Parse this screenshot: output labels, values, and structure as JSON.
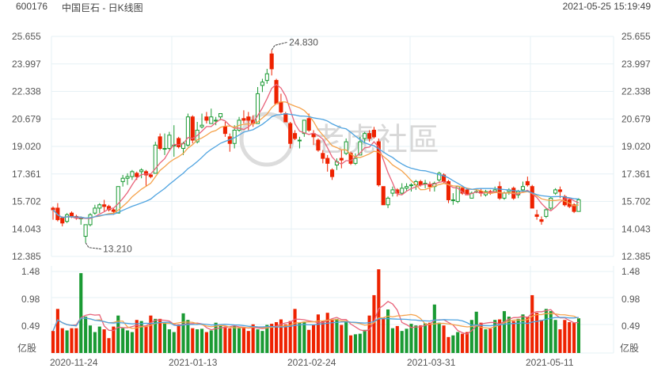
{
  "header": {
    "code": "600176",
    "title": "中国巨石 - 日K线图",
    "datetime": "2021-05-25 15:19:49"
  },
  "watermark": "老虎社區",
  "colors": {
    "up": "#1a9a33",
    "down": "#ee2200",
    "ma5": "#e8637a",
    "ma10": "#f5a24b",
    "ma20": "#4ea3e0",
    "grid": "#e6f0f5"
  },
  "chart_data": {
    "type": "candlestick",
    "price_axis": {
      "ticks": [
        "25.655",
        "23.997",
        "22.338",
        "20.679",
        "19.020",
        "17.361",
        "15.702",
        "14.043",
        "12.385"
      ],
      "range": [
        12.385,
        25.655
      ]
    },
    "volume_axis": {
      "ticks": [
        "1.48",
        "0.98",
        "0.49"
      ],
      "unit": "亿股",
      "range": [
        0,
        1.48
      ]
    },
    "x_labels": [
      "2020-11-24",
      "2021-01-13",
      "2021-02-24",
      "2021-03-31",
      "2021-05-11"
    ],
    "annotations": {
      "max": "24.830",
      "min": "13.210"
    },
    "ma_periods": [
      5,
      10,
      20
    ],
    "ohlc": [
      [
        15.3,
        15.4,
        14.6,
        15.2
      ],
      [
        15.3,
        15.6,
        14.5,
        14.6
      ],
      [
        14.7,
        14.8,
        14.2,
        14.4
      ],
      [
        14.5,
        15.0,
        14.4,
        14.9
      ],
      [
        15.0,
        15.1,
        14.7,
        14.8
      ],
      [
        14.8,
        14.9,
        14.6,
        14.7
      ],
      [
        14.7,
        14.8,
        14.3,
        14.7
      ],
      [
        13.6,
        14.3,
        13.21,
        14.3
      ],
      [
        14.3,
        15.0,
        14.2,
        14.9
      ],
      [
        15.0,
        15.5,
        14.9,
        15.3
      ],
      [
        15.3,
        15.6,
        15.0,
        15.5
      ],
      [
        15.5,
        15.8,
        15.1,
        15.4
      ],
      [
        15.4,
        15.5,
        15.1,
        15.2
      ],
      [
        15.2,
        15.3,
        14.9,
        15.1
      ],
      [
        15.0,
        16.6,
        15.0,
        16.6
      ],
      [
        16.9,
        17.3,
        16.6,
        17.1
      ],
      [
        17.1,
        17.4,
        16.7,
        17.2
      ],
      [
        17.2,
        17.6,
        17.0,
        17.5
      ],
      [
        17.4,
        17.5,
        17.0,
        17.2
      ],
      [
        17.5,
        17.7,
        17.1,
        17.6
      ],
      [
        17.5,
        17.6,
        16.6,
        17.3
      ],
      [
        17.3,
        17.4,
        17.1,
        17.2
      ],
      [
        17.4,
        19.3,
        17.4,
        19.1
      ],
      [
        19.6,
        19.8,
        18.8,
        18.9
      ],
      [
        18.9,
        19.8,
        18.5,
        18.9
      ],
      [
        18.9,
        19.9,
        18.8,
        19.7
      ],
      [
        19.1,
        20.3,
        18.4,
        19.1
      ],
      [
        19.5,
        19.6,
        18.9,
        19.0
      ],
      [
        18.9,
        19.3,
        18.5,
        19.2
      ],
      [
        19.1,
        21.0,
        19.0,
        20.8
      ],
      [
        20.8,
        20.9,
        19.2,
        19.4
      ],
      [
        19.3,
        20.5,
        19.2,
        20.0
      ],
      [
        20.2,
        21.0,
        20.1,
        20.3
      ],
      [
        20.8,
        21.1,
        20.4,
        20.6
      ],
      [
        20.4,
        21.3,
        20.4,
        20.8
      ],
      [
        20.6,
        20.8,
        20.3,
        20.6
      ],
      [
        20.8,
        21.0,
        20.6,
        21.0
      ],
      [
        20.2,
        20.5,
        19.6,
        19.8
      ],
      [
        19.6,
        19.8,
        18.7,
        19.2
      ],
      [
        19.2,
        20.3,
        18.9,
        20.0
      ],
      [
        20.0,
        20.8,
        19.9,
        20.6
      ],
      [
        20.7,
        21.2,
        20.4,
        20.6
      ],
      [
        20.8,
        21.1,
        20.0,
        20.6
      ],
      [
        20.6,
        20.9,
        20.2,
        20.4
      ],
      [
        20.4,
        22.6,
        20.4,
        22.2
      ],
      [
        22.7,
        23.1,
        22.3,
        22.9
      ],
      [
        23.0,
        23.7,
        22.8,
        23.4
      ],
      [
        24.6,
        24.83,
        23.3,
        23.7
      ],
      [
        23.0,
        23.1,
        21.6,
        21.6
      ],
      [
        21.7,
        22.2,
        21.0,
        21.1
      ],
      [
        21.0,
        21.1,
        20.5,
        20.5
      ],
      [
        20.4,
        20.5,
        18.9,
        19.2
      ],
      [
        19.8,
        20.0,
        19.4,
        19.5
      ],
      [
        19.4,
        19.6,
        18.9,
        19.4
      ],
      [
        19.8,
        20.6,
        19.6,
        20.6
      ],
      [
        20.7,
        21.0,
        19.9,
        20.0
      ],
      [
        19.8,
        20.0,
        19.1,
        19.6
      ],
      [
        19.4,
        19.5,
        18.7,
        18.8
      ],
      [
        18.6,
        18.8,
        18.0,
        18.3
      ],
      [
        18.3,
        18.5,
        17.5,
        18.0
      ],
      [
        17.6,
        17.7,
        17.0,
        17.2
      ],
      [
        17.9,
        18.3,
        17.6,
        18.1
      ],
      [
        18.3,
        18.8,
        17.7,
        18.2
      ],
      [
        18.6,
        19.5,
        18.5,
        19.3
      ],
      [
        18.6,
        18.7,
        17.9,
        18.0
      ],
      [
        18.0,
        18.6,
        17.9,
        18.3
      ],
      [
        18.5,
        19.6,
        18.5,
        19.3
      ],
      [
        19.5,
        19.9,
        19.2,
        19.8
      ],
      [
        19.8,
        20.0,
        19.3,
        19.5
      ],
      [
        20.0,
        20.2,
        19.5,
        19.6
      ],
      [
        19.3,
        19.5,
        16.6,
        16.7
      ],
      [
        16.6,
        16.6,
        15.5,
        15.5
      ],
      [
        15.5,
        16.0,
        15.3,
        15.9
      ],
      [
        16.2,
        16.6,
        16.0,
        16.4
      ],
      [
        16.4,
        16.5,
        16.0,
        16.2
      ],
      [
        16.2,
        16.8,
        16.1,
        16.5
      ],
      [
        16.5,
        16.8,
        16.3,
        16.6
      ],
      [
        16.7,
        16.8,
        16.3,
        16.7
      ],
      [
        16.7,
        17.0,
        16.4,
        16.9
      ],
      [
        16.9,
        17.0,
        16.6,
        16.7
      ],
      [
        16.8,
        17.0,
        16.5,
        16.8
      ],
      [
        16.7,
        16.9,
        16.3,
        16.6
      ],
      [
        16.6,
        16.9,
        16.3,
        16.8
      ],
      [
        17.0,
        17.5,
        16.9,
        17.4
      ],
      [
        17.3,
        17.4,
        16.8,
        16.9
      ],
      [
        16.9,
        17.0,
        15.6,
        15.8
      ],
      [
        15.8,
        16.2,
        15.5,
        15.8
      ],
      [
        15.7,
        16.6,
        15.6,
        16.6
      ],
      [
        16.5,
        16.6,
        16.1,
        16.2
      ],
      [
        16.4,
        16.5,
        16.1,
        16.1
      ],
      [
        15.9,
        16.3,
        15.9,
        16.2
      ],
      [
        16.3,
        16.4,
        16.2,
        16.3
      ],
      [
        16.3,
        16.5,
        16.0,
        16.2
      ],
      [
        16.1,
        16.4,
        16.0,
        16.3
      ],
      [
        16.3,
        16.4,
        16.1,
        16.25
      ],
      [
        16.3,
        16.6,
        16.2,
        16.4
      ],
      [
        16.6,
        16.9,
        15.8,
        15.9
      ],
      [
        15.9,
        16.3,
        15.8,
        16.2
      ],
      [
        16.3,
        16.5,
        16.1,
        16.4
      ],
      [
        16.5,
        16.6,
        15.8,
        15.9
      ],
      [
        16.1,
        16.4,
        15.9,
        16.3
      ],
      [
        16.4,
        16.9,
        16.3,
        16.6
      ],
      [
        16.9,
        17.2,
        16.6,
        16.7
      ],
      [
        16.6,
        16.7,
        15.3,
        15.3
      ],
      [
        14.9,
        15.2,
        14.6,
        14.8
      ],
      [
        14.6,
        14.8,
        14.3,
        14.5
      ],
      [
        14.8,
        15.3,
        14.7,
        15.2
      ],
      [
        15.3,
        16.0,
        15.2,
        15.9
      ],
      [
        16.2,
        16.5,
        16.1,
        16.4
      ],
      [
        16.4,
        16.6,
        15.9,
        16.3
      ],
      [
        16.0,
        16.1,
        15.4,
        15.5
      ],
      [
        15.8,
        15.9,
        15.3,
        15.4
      ],
      [
        15.5,
        15.6,
        15.0,
        15.1
      ],
      [
        15.1,
        15.9,
        15.1,
        15.8
      ]
    ],
    "volume": [
      0.4,
      0.8,
      0.45,
      0.41,
      0.45,
      0.45,
      1.45,
      0.66,
      0.5,
      0.38,
      0.48,
      0.43,
      0.27,
      0.48,
      0.68,
      0.45,
      0.41,
      0.38,
      0.6,
      0.58,
      0.5,
      0.68,
      0.62,
      0.62,
      0.55,
      0.43,
      0.38,
      0.52,
      0.72,
      0.6,
      0.45,
      0.43,
      0.44,
      0.38,
      0.41,
      0.55,
      0.5,
      0.48,
      0.45,
      0.49,
      0.45,
      0.47,
      0.4,
      0.52,
      0.43,
      0.4,
      0.51,
      0.53,
      0.56,
      0.61,
      0.52,
      0.58,
      0.8,
      0.55,
      0.57,
      0.42,
      0.51,
      0.7,
      0.58,
      0.73,
      0.6,
      0.62,
      0.51,
      0.58,
      0.32,
      0.34,
      0.35,
      0.42,
      0.68,
      1.05,
      1.52,
      0.64,
      0.79,
      0.45,
      0.49,
      0.4,
      0.44,
      0.53,
      0.5,
      0.5,
      0.54,
      0.55,
      0.88,
      0.55,
      0.5,
      0.29,
      0.32,
      0.38,
      0.35,
      0.38,
      0.6,
      0.75,
      0.55,
      0.43,
      0.44,
      0.6,
      0.61,
      0.76,
      0.66,
      0.58,
      0.62,
      0.7,
      0.66,
      1.05,
      0.73,
      0.6,
      0.8,
      0.76,
      0.6,
      0.43,
      0.6,
      0.56,
      0.55,
      0.63
    ]
  }
}
